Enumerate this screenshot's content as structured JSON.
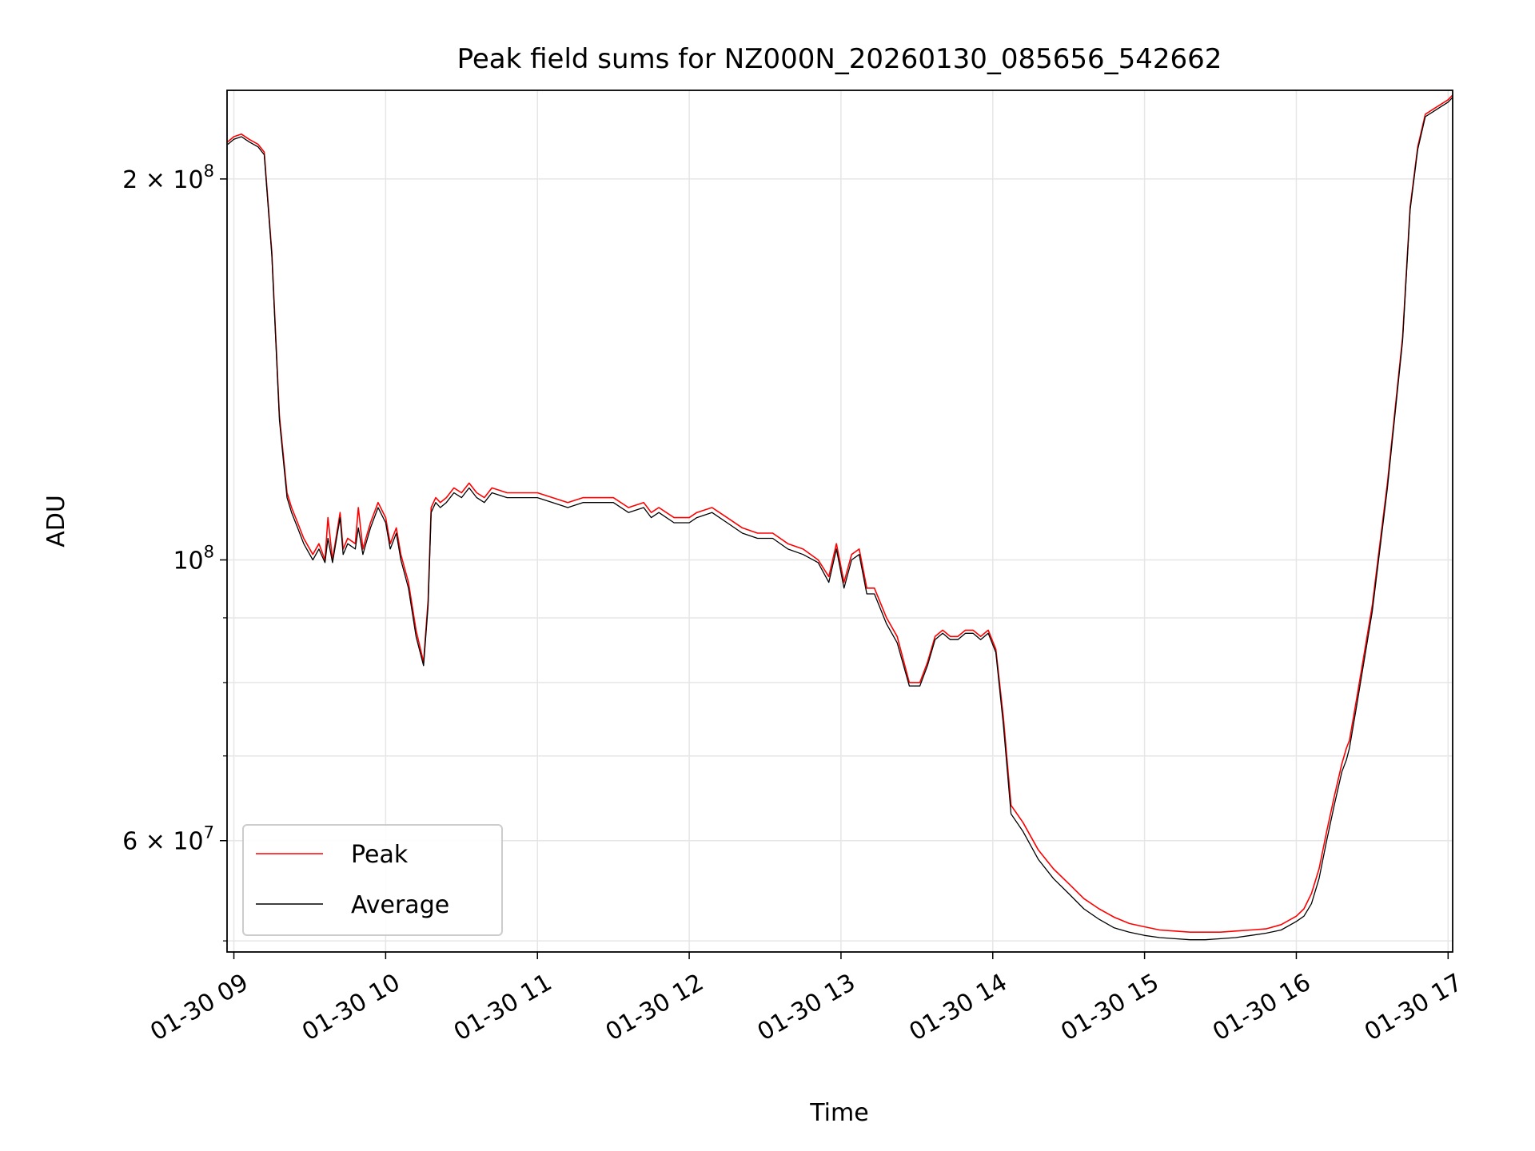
{
  "chart_data": {
    "type": "line",
    "title": "Peak field sums for NZ000N_20260130_085656_542662",
    "xlabel": "Time",
    "ylabel": "ADU",
    "yscale": "log",
    "grid": true,
    "legend_position": "lower-left",
    "x_unit": "hours since 01-30 00:00",
    "xlim": [
      8.955,
      17.03
    ],
    "ylim": [
      49000000,
      235000000
    ],
    "x_ticks": [
      {
        "value": 9,
        "label": "01-30 09"
      },
      {
        "value": 10,
        "label": "01-30 10"
      },
      {
        "value": 11,
        "label": "01-30 11"
      },
      {
        "value": 12,
        "label": "01-30 12"
      },
      {
        "value": 13,
        "label": "01-30 13"
      },
      {
        "value": 14,
        "label": "01-30 14"
      },
      {
        "value": 15,
        "label": "01-30 15"
      },
      {
        "value": 16,
        "label": "01-30 16"
      },
      {
        "value": 17,
        "label": "01-30 17"
      }
    ],
    "y_major_ticks": [
      {
        "value": 60000000,
        "base": "6 × 10",
        "exp": "7"
      },
      {
        "value": 100000000,
        "base": "10",
        "exp": "8"
      },
      {
        "value": 200000000,
        "base": "2 × 10",
        "exp": "8"
      }
    ],
    "y_minor_ticks": [
      50000000,
      70000000,
      80000000,
      90000000
    ],
    "series": [
      {
        "name": "Peak",
        "color": "#ff0000",
        "x": [
          8.96,
          9.0,
          9.05,
          9.1,
          9.16,
          9.2,
          9.25,
          9.3,
          9.35,
          9.38,
          9.42,
          9.46,
          9.52,
          9.56,
          9.6,
          9.62,
          9.65,
          9.7,
          9.72,
          9.75,
          9.8,
          9.82,
          9.85,
          9.87,
          9.9,
          9.95,
          10.0,
          10.03,
          10.07,
          10.1,
          10.15,
          10.2,
          10.25,
          10.28,
          10.3,
          10.33,
          10.36,
          10.4,
          10.45,
          10.5,
          10.55,
          10.6,
          10.65,
          10.7,
          10.8,
          10.9,
          11.0,
          11.1,
          11.2,
          11.3,
          11.4,
          11.5,
          11.6,
          11.7,
          11.75,
          11.8,
          11.9,
          12.0,
          12.05,
          12.15,
          12.25,
          12.35,
          12.45,
          12.55,
          12.65,
          12.75,
          12.85,
          12.92,
          12.97,
          13.02,
          13.07,
          13.12,
          13.17,
          13.22,
          13.3,
          13.37,
          13.45,
          13.52,
          13.57,
          13.62,
          13.67,
          13.72,
          13.77,
          13.82,
          13.87,
          13.92,
          13.97,
          14.02,
          14.07,
          14.12,
          14.2,
          14.3,
          14.4,
          14.5,
          14.6,
          14.7,
          14.8,
          14.9,
          15.0,
          15.1,
          15.2,
          15.3,
          15.4,
          15.5,
          15.6,
          15.7,
          15.8,
          15.9,
          16.0,
          16.05,
          16.1,
          16.15,
          16.2,
          16.25,
          16.3,
          16.33,
          16.35,
          16.4,
          16.5,
          16.6,
          16.7,
          16.75,
          16.8,
          16.85,
          16.9,
          16.95,
          17.0,
          17.03
        ],
        "y": [
          214000000,
          216000000,
          217000000,
          215000000,
          213000000,
          210000000,
          175000000,
          130000000,
          113000000,
          110000000,
          107000000,
          104000000,
          101000000,
          103000000,
          100000000,
          108000000,
          100000000,
          109000000,
          102000000,
          104000000,
          103000000,
          110000000,
          102000000,
          104000000,
          107000000,
          111000000,
          108000000,
          103000000,
          106000000,
          101000000,
          96000000,
          88000000,
          83000000,
          93000000,
          110000000,
          112000000,
          111000000,
          112000000,
          114000000,
          113000000,
          115000000,
          113000000,
          112000000,
          114000000,
          113000000,
          113000000,
          113000000,
          112000000,
          111000000,
          112000000,
          112000000,
          112000000,
          110000000,
          111000000,
          109000000,
          110000000,
          108000000,
          108000000,
          109000000,
          110000000,
          108000000,
          106000000,
          105000000,
          105000000,
          103000000,
          102000000,
          100000000,
          97000000,
          103000000,
          96000000,
          101000000,
          102000000,
          95000000,
          95000000,
          90000000,
          87000000,
          80000000,
          80000000,
          83000000,
          87000000,
          88000000,
          87000000,
          87000000,
          88000000,
          88000000,
          87000000,
          88000000,
          85000000,
          75000000,
          64000000,
          62000000,
          59000000,
          57000000,
          55500000,
          54000000,
          53000000,
          52200000,
          51600000,
          51300000,
          51000000,
          50900000,
          50800000,
          50800000,
          50800000,
          50900000,
          51000000,
          51100000,
          51500000,
          52300000,
          53000000,
          54500000,
          57000000,
          61000000,
          65000000,
          69000000,
          71000000,
          72000000,
          78000000,
          92000000,
          115000000,
          150000000,
          190000000,
          212000000,
          225000000,
          227000000,
          229000000,
          231000000,
          233000000
        ]
      },
      {
        "name": "Average",
        "color": "#000000",
        "x": [
          8.96,
          9.0,
          9.05,
          9.1,
          9.16,
          9.2,
          9.25,
          9.3,
          9.35,
          9.38,
          9.42,
          9.46,
          9.52,
          9.56,
          9.6,
          9.62,
          9.65,
          9.7,
          9.72,
          9.75,
          9.8,
          9.82,
          9.85,
          9.87,
          9.9,
          9.95,
          10.0,
          10.03,
          10.07,
          10.1,
          10.15,
          10.2,
          10.25,
          10.28,
          10.3,
          10.33,
          10.36,
          10.4,
          10.45,
          10.5,
          10.55,
          10.6,
          10.65,
          10.7,
          10.8,
          10.9,
          11.0,
          11.1,
          11.2,
          11.3,
          11.4,
          11.5,
          11.6,
          11.7,
          11.75,
          11.8,
          11.9,
          12.0,
          12.05,
          12.15,
          12.25,
          12.35,
          12.45,
          12.55,
          12.65,
          12.75,
          12.85,
          12.92,
          12.97,
          13.02,
          13.07,
          13.12,
          13.17,
          13.22,
          13.3,
          13.37,
          13.45,
          13.52,
          13.57,
          13.62,
          13.67,
          13.72,
          13.77,
          13.82,
          13.87,
          13.92,
          13.97,
          14.02,
          14.07,
          14.12,
          14.2,
          14.3,
          14.4,
          14.5,
          14.6,
          14.7,
          14.8,
          14.9,
          15.0,
          15.1,
          15.2,
          15.3,
          15.4,
          15.5,
          15.6,
          15.7,
          15.8,
          15.9,
          16.0,
          16.05,
          16.1,
          16.15,
          16.2,
          16.25,
          16.3,
          16.33,
          16.35,
          16.4,
          16.5,
          16.6,
          16.7,
          16.75,
          16.8,
          16.85,
          16.9,
          16.95,
          17.0,
          17.03
        ],
        "y": [
          213000000,
          215000000,
          216000000,
          214000000,
          212000000,
          209000000,
          174000000,
          129000000,
          112000000,
          109000000,
          106000000,
          103000000,
          100000000,
          102000000,
          99500000,
          104000000,
          99500000,
          108000000,
          101000000,
          103000000,
          102000000,
          106000000,
          101000000,
          103000000,
          106000000,
          110000000,
          107000000,
          102000000,
          105000000,
          100000000,
          95000000,
          87000000,
          82500000,
          92000000,
          109000000,
          111000000,
          110000000,
          111000000,
          113000000,
          112000000,
          114000000,
          112000000,
          111000000,
          113000000,
          112000000,
          112000000,
          112000000,
          111000000,
          110000000,
          111000000,
          111000000,
          111000000,
          109000000,
          110000000,
          108000000,
          109000000,
          107000000,
          107000000,
          108000000,
          109000000,
          107000000,
          105000000,
          104000000,
          104000000,
          102000000,
          101000000,
          99500000,
          96000000,
          102000000,
          95000000,
          100000000,
          101000000,
          94000000,
          94000000,
          89000000,
          86000000,
          79500000,
          79500000,
          82500000,
          86500000,
          87500000,
          86500000,
          86500000,
          87500000,
          87500000,
          86500000,
          87500000,
          84500000,
          74000000,
          63000000,
          61000000,
          58000000,
          56000000,
          54500000,
          53000000,
          52000000,
          51200000,
          50800000,
          50500000,
          50300000,
          50200000,
          50100000,
          50100000,
          50200000,
          50300000,
          50500000,
          50700000,
          51000000,
          51800000,
          52300000,
          53500000,
          56000000,
          60000000,
          64000000,
          68000000,
          69500000,
          71000000,
          77000000,
          91000000,
          114000000,
          149000000,
          189000000,
          211000000,
          224000000,
          226000000,
          228000000,
          230000000,
          232000000
        ]
      }
    ]
  }
}
